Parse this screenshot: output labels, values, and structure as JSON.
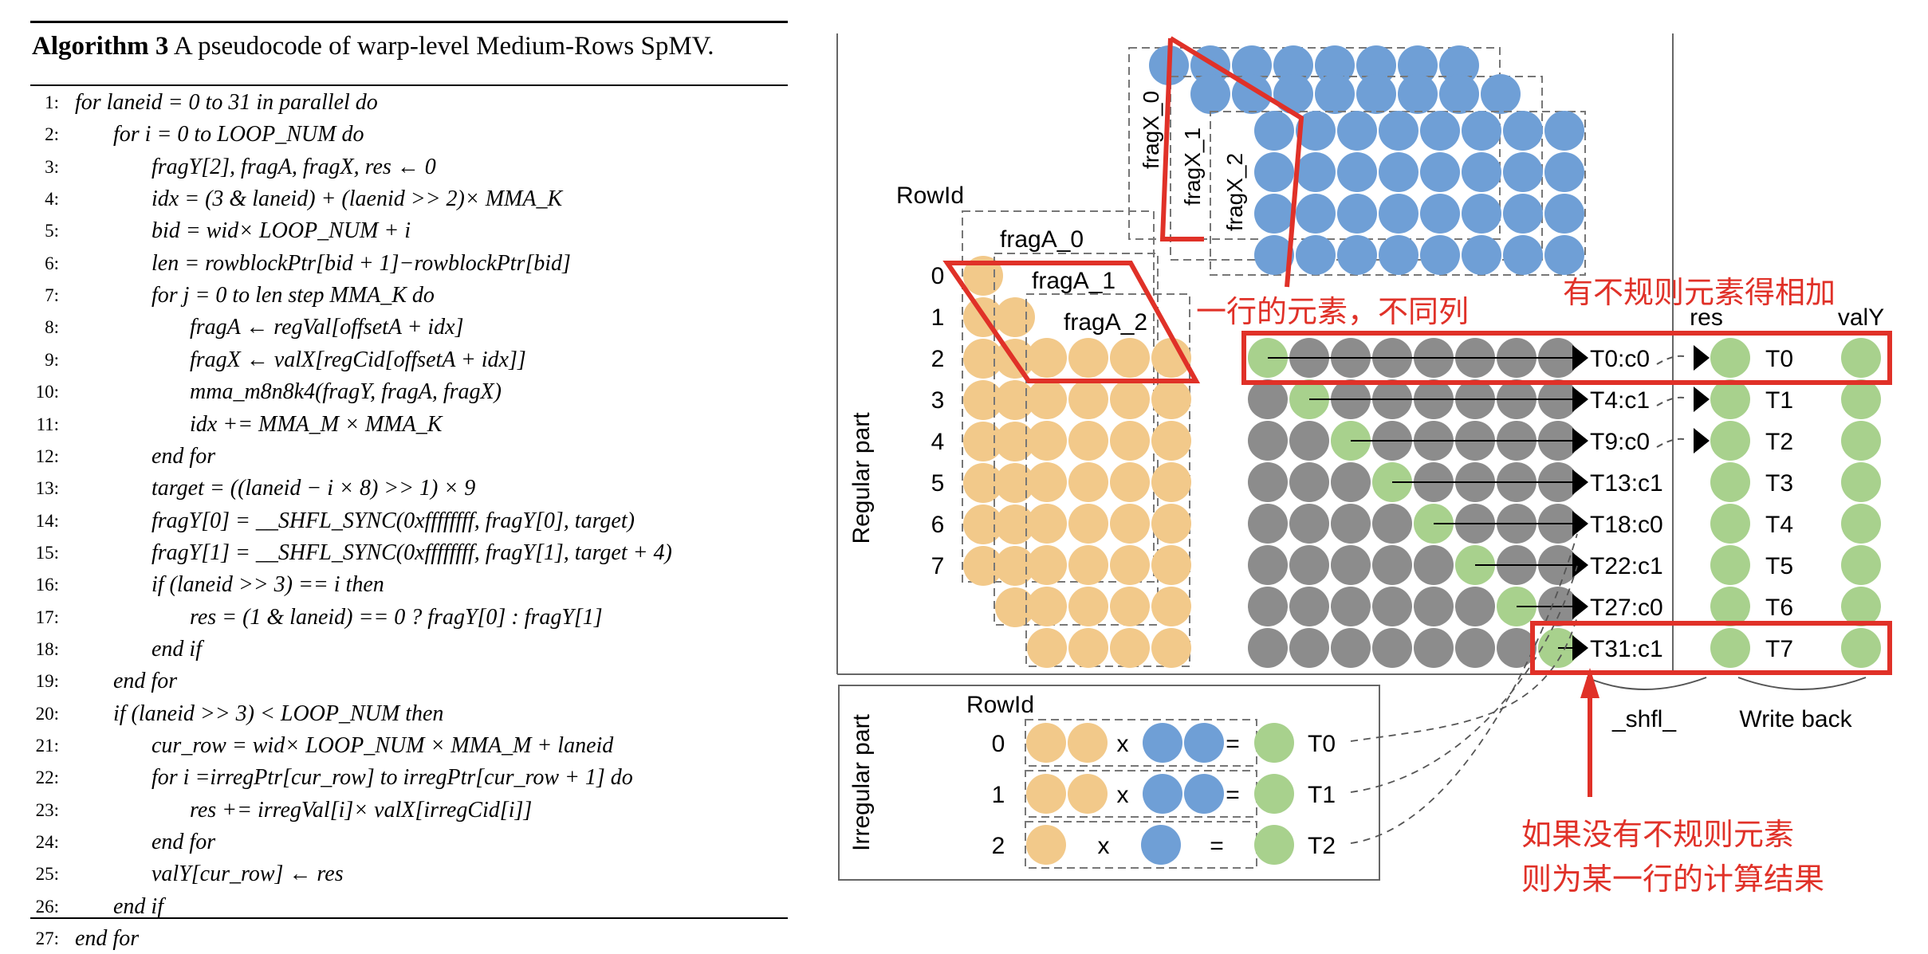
{
  "algorithm": {
    "label": "Algorithm 3",
    "caption": "A pseudocode of warp-level Medium-Rows SpMV.",
    "lines": [
      {
        "n": "1:",
        "indent": 0,
        "text": "for laneid = 0 to 31 in parallel do"
      },
      {
        "n": "2:",
        "indent": 1,
        "text": "for i = 0 to LOOP_NUM do"
      },
      {
        "n": "3:",
        "indent": 2,
        "text": "fragY[2], fragA, fragX, res ← 0"
      },
      {
        "n": "4:",
        "indent": 2,
        "text": "idx = (3 & laneid) + (laenid >> 2)× MMA_K"
      },
      {
        "n": "5:",
        "indent": 2,
        "text": "bid = wid× LOOP_NUM + i"
      },
      {
        "n": "6:",
        "indent": 2,
        "text": "len = rowblockPtr[bid + 1]−rowblockPtr[bid]"
      },
      {
        "n": "7:",
        "indent": 2,
        "text": "for j = 0 to len step MMA_K do"
      },
      {
        "n": "8:",
        "indent": 3,
        "text": "fragA ← regVal[offsetA + idx]"
      },
      {
        "n": "9:",
        "indent": 3,
        "text": "fragX ← valX[regCid[offsetA + idx]]"
      },
      {
        "n": "10:",
        "indent": 3,
        "text": "mma_m8n8k4(fragY, fragA, fragX)"
      },
      {
        "n": "11:",
        "indent": 3,
        "text": "idx += MMA_M × MMA_K"
      },
      {
        "n": "12:",
        "indent": 2,
        "text": "end for"
      },
      {
        "n": "13:",
        "indent": 2,
        "text": "target = ((laneid − i × 8) >> 1) × 9"
      },
      {
        "n": "14:",
        "indent": 2,
        "text": "fragY[0] = __SHFL_SYNC(0xffffffff, fragY[0], target)"
      },
      {
        "n": "15:",
        "indent": 2,
        "text": "fragY[1] = __SHFL_SYNC(0xffffffff, fragY[1], target + 4)"
      },
      {
        "n": "16:",
        "indent": 2,
        "text": "if (laneid >> 3) == i then"
      },
      {
        "n": "17:",
        "indent": 3,
        "text": "res = (1 & laneid) == 0 ? fragY[0] : fragY[1]"
      },
      {
        "n": "18:",
        "indent": 2,
        "text": "end if"
      },
      {
        "n": "19:",
        "indent": 1,
        "text": "end for"
      },
      {
        "n": "20:",
        "indent": 1,
        "text": "if (laneid >> 3) < LOOP_NUM then"
      },
      {
        "n": "21:",
        "indent": 2,
        "text": "cur_row = wid× LOOP_NUM × MMA_M + laneid"
      },
      {
        "n": "22:",
        "indent": 2,
        "text": "for i =irregPtr[cur_row] to irregPtr[cur_row + 1] do"
      },
      {
        "n": "23:",
        "indent": 3,
        "text": "res += irregVal[i]× valX[irregCid[i]]"
      },
      {
        "n": "24:",
        "indent": 2,
        "text": "end for"
      },
      {
        "n": "25:",
        "indent": 2,
        "text": "valY[cur_row] ← res"
      },
      {
        "n": "26:",
        "indent": 1,
        "text": "end if"
      },
      {
        "n": "27:",
        "indent": 0,
        "text": "end for"
      }
    ]
  },
  "diagram": {
    "regular_label": "Regular part",
    "irregular_label": "Irregular part",
    "rowid_label": "RowId",
    "rowids": [
      "0",
      "1",
      "2",
      "3",
      "4",
      "5",
      "6",
      "7"
    ],
    "fragA": [
      "fragA_0",
      "fragA_1",
      "fragA_2"
    ],
    "fragX": [
      "fragX_0",
      "fragX_1",
      "fragX_2"
    ],
    "thread_cols": [
      "T0:c0",
      "T4:c1",
      "T9:c0",
      "T13:c1",
      "T18:c0",
      "T22:c1",
      "T27:c0",
      "T31:c1"
    ],
    "header_res": "res",
    "header_valy": "valY",
    "out_threads": [
      "T0",
      "T1",
      "T2",
      "T3",
      "T4",
      "T5",
      "T6",
      "T7"
    ],
    "shfl_label": "_shfl_",
    "write_back_label": "Write back",
    "irregular_rows": [
      {
        "row": "0",
        "a": 2,
        "x": 2,
        "times": "x",
        "eq": "=",
        "t": "T0"
      },
      {
        "row": "1",
        "a": 2,
        "x": 2,
        "times": "x",
        "eq": "=",
        "t": "T1"
      },
      {
        "row": "2",
        "a": 1,
        "x": 1,
        "times": "x",
        "eq": "=",
        "t": "T2"
      }
    ],
    "annotation_row": "一行的元素，不同列",
    "annotation_irregular": "有不规则元素得相加",
    "annotation_result_1": "如果没有不规则元素",
    "annotation_result_2": "则为某一行的计算结果",
    "colors": {
      "orange": "#f2c98a",
      "blue": "#6f9fd6",
      "gray": "#8c8c8c",
      "green": "#a8d18d",
      "red": "#e03128"
    }
  }
}
